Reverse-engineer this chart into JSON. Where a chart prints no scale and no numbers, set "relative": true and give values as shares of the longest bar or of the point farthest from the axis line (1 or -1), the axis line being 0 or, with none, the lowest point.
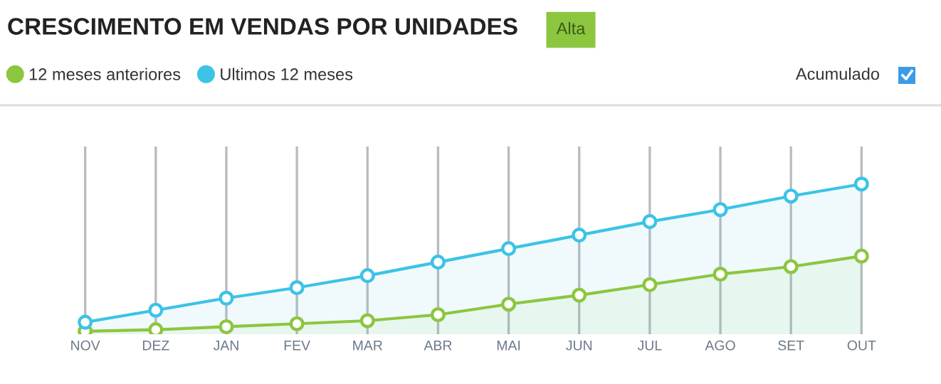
{
  "chart_data": {
    "type": "area",
    "title": "CRESCIMENTO EM VENDAS POR UNIDADES",
    "relative": true,
    "categories": [
      "NOV",
      "DEZ",
      "JAN",
      "FEV",
      "MAR",
      "ABR",
      "MAI",
      "JUN",
      "JUL",
      "AGO",
      "SET",
      "OUT"
    ],
    "series": [
      {
        "name": "12 meses anteriores",
        "color": "#8cc63f",
        "values": [
          0.02,
          0.03,
          0.05,
          0.07,
          0.09,
          0.13,
          0.2,
          0.26,
          0.33,
          0.4,
          0.45,
          0.52
        ]
      },
      {
        "name": "Ultimos 12 meses",
        "color": "#3cc3e6",
        "values": [
          0.08,
          0.16,
          0.24,
          0.31,
          0.39,
          0.48,
          0.57,
          0.66,
          0.75,
          0.83,
          0.92,
          1
        ]
      }
    ],
    "annotations": [
      "Alta",
      "Acumulado"
    ],
    "grid": "x",
    "legend": "top left",
    "marker": "circle",
    "line_style": "solid"
  }
}
